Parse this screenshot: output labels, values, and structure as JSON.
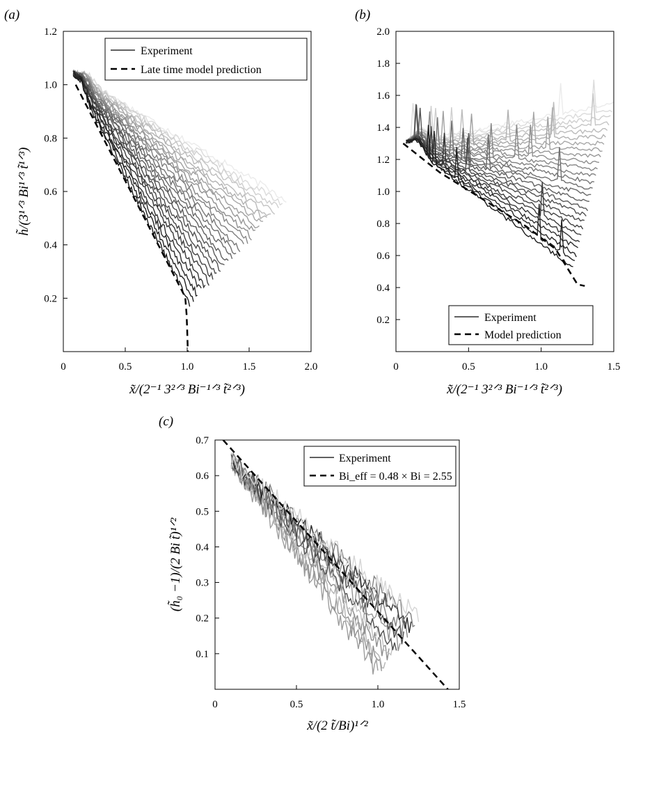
{
  "figure": {
    "panels": [
      {
        "label": "(a)",
        "xlabel": "x̃/(2⁻¹ 3²ᐟ³ Bi⁻¹ᐟ³ t̃²ᐟ³)",
        "ylabel": "h̃/(3¹ᐟ³ Bi¹ᐟ³ t̃¹ᐟ³)",
        "legend": [
          "Experiment",
          "Late time model prediction"
        ]
      },
      {
        "label": "(b)",
        "xlabel": "x̃/(2⁻¹ 3²ᐟ³ Bi⁻¹ᐟ³ t̃²ᐟ³)",
        "ylabel": "",
        "legend": [
          "Experiment",
          "Model prediction"
        ]
      },
      {
        "label": "(c)",
        "xlabel": "x̃/(2 t̃/Bi)¹ᐟ²",
        "ylabel": "(h̃₀ −1)/(2 Bi t̃)¹ᐟ²",
        "legend": [
          "Experiment",
          "Bi_eff = 0.48 × Bi = 2.55"
        ]
      }
    ]
  },
  "chart_data": [
    {
      "type": "line",
      "panel": "(a)",
      "xlim": [
        0,
        2.0
      ],
      "ylim": [
        0,
        1.2
      ],
      "xticks": [
        0,
        0.5,
        1.0,
        1.5,
        2.0
      ],
      "xtick_labels": [
        "0",
        "0.5",
        "1.0",
        "1.5",
        "2.0"
      ],
      "yticks": [
        0.2,
        0.4,
        0.6,
        0.8,
        1.0,
        1.2
      ],
      "ytick_labels": [
        "0.2",
        "0.4",
        "0.6",
        "0.8",
        "1.0",
        "1.2"
      ],
      "legend_position": "top-right",
      "experiment_curves": {
        "count": 26,
        "color_range": [
          "#ebebeb",
          "#1a1a1a"
        ],
        "start_x": 0.08,
        "start_y": 1.04,
        "peak_x": 0.17,
        "peak_y": 1.07,
        "end_x_range": [
          1.8,
          1.02
        ],
        "end_y_range": [
          0.57,
          0.18
        ]
      },
      "model": {
        "style": "dashed",
        "x": [
          0.1,
          0.3,
          0.5,
          0.7,
          0.9,
          0.98,
          1.0
        ],
        "y": [
          1.0,
          0.85,
          0.62,
          0.45,
          0.28,
          0.12,
          0.0
        ]
      }
    },
    {
      "type": "line",
      "panel": "(b)",
      "xlim": [
        0,
        1.5
      ],
      "ylim": [
        0,
        2.0
      ],
      "xticks": [
        0,
        0.5,
        1.0,
        1.5
      ],
      "xtick_labels": [
        "0",
        "0.5",
        "1.0",
        "1.5"
      ],
      "yticks": [
        0.2,
        0.4,
        0.6,
        0.8,
        1.0,
        1.2,
        1.4,
        1.6,
        1.8,
        2.0
      ],
      "ytick_labels": [
        "0.2",
        "0.4",
        "0.6",
        "0.8",
        "1.0",
        "1.2",
        "1.4",
        "1.6",
        "1.8",
        "2.0"
      ],
      "legend_position": "bottom-right",
      "experiment_curves": {
        "count": 26,
        "color_range": [
          "#ebebeb",
          "#1a1a1a"
        ],
        "start_x": 0.07,
        "start_y": 1.3,
        "peak_x": 0.13,
        "peak_y": 1.37,
        "end_x_range": [
          1.5,
          1.22
        ],
        "end_y_range": [
          1.55,
          0.52
        ]
      },
      "model": {
        "style": "dashed",
        "x": [
          0.05,
          0.3,
          0.6,
          0.9,
          1.1,
          1.25,
          1.3
        ],
        "y": [
          1.3,
          1.12,
          0.95,
          0.78,
          0.64,
          0.42,
          0.41
        ]
      }
    },
    {
      "type": "line",
      "panel": "(c)",
      "xlim": [
        0,
        1.5
      ],
      "ylim": [
        0,
        0.7
      ],
      "xticks": [
        0,
        0.5,
        1.0,
        1.5
      ],
      "xtick_labels": [
        "0",
        "0.5",
        "1.0",
        "1.5"
      ],
      "yticks": [
        0.1,
        0.2,
        0.3,
        0.4,
        0.5,
        0.6,
        0.7
      ],
      "ytick_labels": [
        "0.1",
        "0.2",
        "0.3",
        "0.4",
        "0.5",
        "0.6",
        "0.7"
      ],
      "legend_position": "top-right",
      "experiment_curves": {
        "count": 12,
        "color_range": [
          "#d8d8d8",
          "#202020"
        ],
        "start_x": 0.1,
        "start_y": 0.64,
        "end_x_range": [
          1.0,
          1.25
        ],
        "end_y_range": [
          0.05,
          0.2
        ]
      },
      "model": {
        "style": "dashed",
        "x": [
          0.05,
          1.43
        ],
        "y": [
          0.7,
          0.0
        ]
      }
    }
  ]
}
